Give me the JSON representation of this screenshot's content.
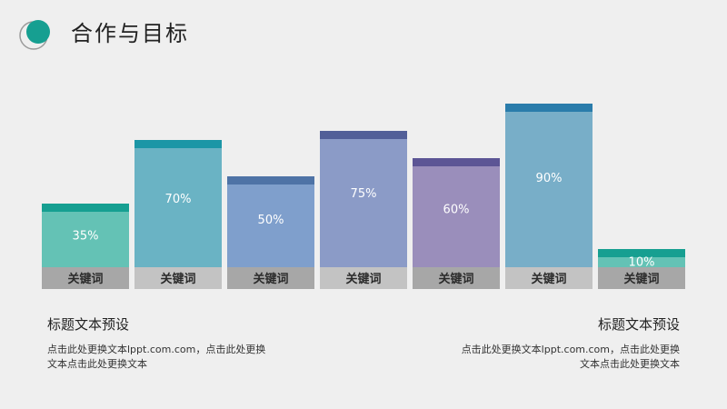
{
  "header": {
    "title": "合作与目标"
  },
  "colors": {
    "background": "#efefef",
    "cat_box": [
      "#a7a7a7",
      "#c3c3c3",
      "#a7a7a7",
      "#c3c3c3",
      "#a7a7a7",
      "#c3c3c3",
      "#a7a7a7"
    ]
  },
  "chart_data": {
    "type": "bar",
    "categories": [
      "关键词",
      "关键词",
      "关键词",
      "关键词",
      "关键词",
      "关键词",
      "关键词"
    ],
    "values": [
      35,
      70,
      50,
      75,
      60,
      90,
      10
    ],
    "labels": [
      "35%",
      "70%",
      "50%",
      "75%",
      "60%",
      "90%",
      "10%"
    ],
    "ylim": [
      0,
      100
    ],
    "bar_colors": [
      "#64c2b5",
      "#6ab3c4",
      "#7f9fcc",
      "#8b9bc7",
      "#9a8ebb",
      "#78aec8",
      "#64c2b5"
    ],
    "cap_colors": [
      "#169f91",
      "#1b96a6",
      "#4e73a6",
      "#525f98",
      "#5c5595",
      "#2a7cab",
      "#169f91"
    ]
  },
  "left_block": {
    "heading": "标题文本预设",
    "line1": "点击此处更换文本lppt.com.com，点击此处更换",
    "line2": "文本点击此处更换文本"
  },
  "right_block": {
    "heading": "标题文本预设",
    "line1": "点击此处更换文本lppt.com.com，点击此处更换",
    "line2": "文本点击此处更换文本"
  }
}
